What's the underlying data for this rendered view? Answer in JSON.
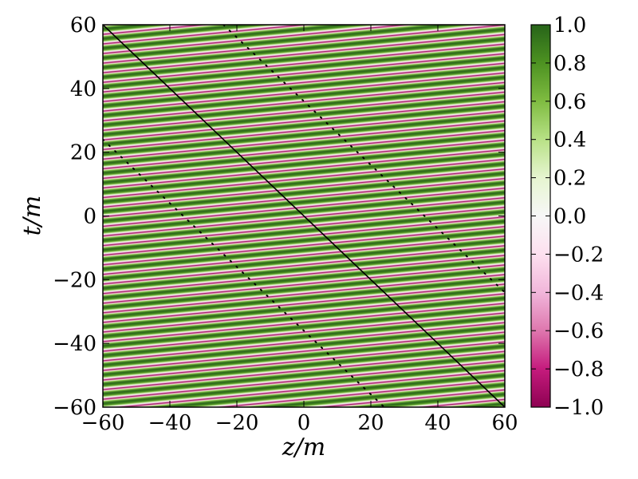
{
  "chart_data": {
    "type": "heatmap",
    "title": "",
    "xlabel": "z/m",
    "ylabel": "t/m",
    "xlim": [
      -60,
      60
    ],
    "ylim": [
      -60,
      60
    ],
    "x_ticks": [
      -60,
      -40,
      -20,
      0,
      20,
      40,
      60
    ],
    "y_ticks": [
      -60,
      -40,
      -20,
      0,
      20,
      40,
      60
    ],
    "x_tick_labels": [
      "−60",
      "−40",
      "−20",
      "0",
      "20",
      "40",
      "60"
    ],
    "y_tick_labels": [
      "−60",
      "−40",
      "−20",
      "0",
      "20",
      "40",
      "60"
    ],
    "colormap": "PiYG",
    "color_range": [
      -1.0,
      1.0
    ],
    "colorbar_ticks": [
      1.0,
      0.8,
      0.6,
      0.4,
      0.2,
      0.0,
      -0.2,
      -0.4,
      -0.6,
      -0.8,
      -1.0
    ],
    "colorbar_tick_labels": [
      "1.0",
      "0.8",
      "0.6",
      "0.4",
      "0.2",
      "0.0",
      "−0.2",
      "−0.4",
      "−0.6",
      "−0.8",
      "−1.0"
    ],
    "field": {
      "description": "cos(omega*t + k*z) stripes",
      "band_count": 40,
      "stripe_slope": -0.095
    },
    "lines": [
      {
        "style": "solid",
        "points": [
          [
            -60,
            60
          ],
          [
            60,
            -60
          ]
        ]
      },
      {
        "style": "dotted",
        "points": [
          [
            -24,
            60
          ],
          [
            60,
            -24
          ]
        ]
      },
      {
        "style": "dotted",
        "points": [
          [
            -60,
            24
          ],
          [
            24,
            -60
          ]
        ]
      }
    ],
    "colors": {
      "magenta_dark": "#8e0152",
      "green_dark": "#276419",
      "white_mid": "#f7f7f7",
      "line": "#000000"
    }
  }
}
